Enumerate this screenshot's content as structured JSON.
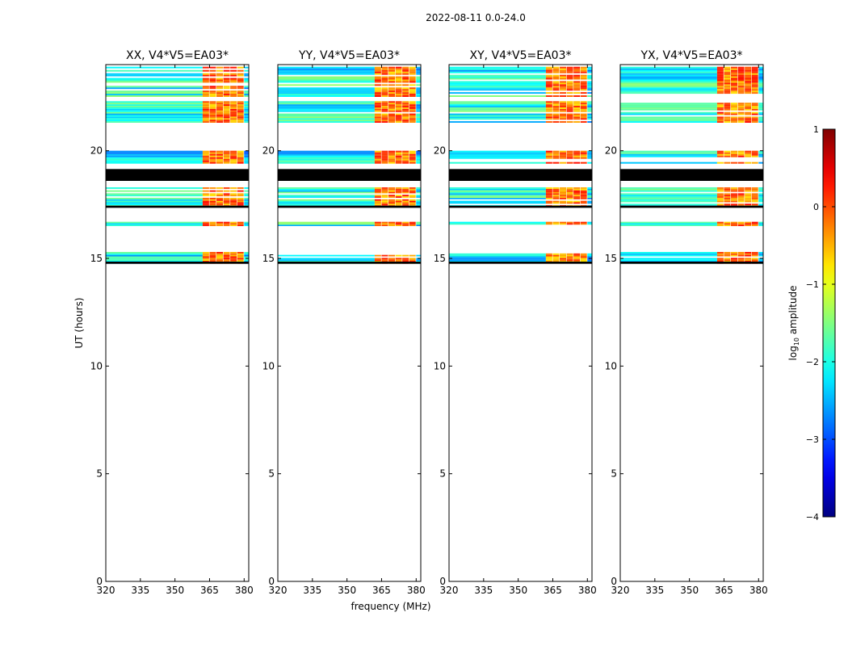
{
  "figure": {
    "title": "2022-08-11 0.0-24.0",
    "xlabel": "frequency (MHz)",
    "ylabel": "UT (hours)"
  },
  "chart_data": {
    "type": "heatmap",
    "xlim": [
      320,
      382
    ],
    "ylim": [
      0,
      24
    ],
    "xticks": [
      320,
      335,
      350,
      365,
      380
    ],
    "yticks": [
      0,
      5,
      10,
      15,
      20
    ],
    "colorbar": {
      "label": "log10 amplitude",
      "label_main": "log",
      "label_sub": "10",
      "label_tail": " amplitude",
      "range": [
        -4,
        1
      ],
      "ticks": [
        1,
        0,
        -1,
        -2,
        -3,
        -4
      ],
      "tick_labels": [
        "1",
        "0",
        "−1",
        "−2",
        "−3",
        "−4"
      ],
      "colormap": "jet"
    },
    "panels": [
      {
        "title": "XX, V4*V5=EA03*",
        "pol": "XX"
      },
      {
        "title": "YY, V4*V5=EA03*",
        "pol": "YY"
      },
      {
        "title": "XY, V4*V5=EA03*",
        "pol": "XY"
      },
      {
        "title": "YX, V4*V5=EA03*",
        "pol": "YX"
      }
    ],
    "data_bands_hours": [
      {
        "start": 14.75,
        "end": 15.3,
        "level": -2.2
      },
      {
        "start": 16.5,
        "end": 16.7,
        "level": -2.0
      },
      {
        "start": 17.4,
        "end": 18.3,
        "level": -2.0
      },
      {
        "start": 19.4,
        "end": 20.0,
        "level": -2.2
      },
      {
        "start": 21.3,
        "end": 22.3,
        "level": -2.0
      },
      {
        "start": 22.5,
        "end": 23.6,
        "level": -2.0
      },
      {
        "start": 23.6,
        "end": 23.9,
        "level": -2.3
      }
    ],
    "flagged_bands_hours": [
      {
        "start": 18.6,
        "end": 19.15
      },
      {
        "start": 17.35,
        "end": 17.45
      },
      {
        "start": 14.75,
        "end": 14.85
      }
    ],
    "rfi_channels_mhz": [
      {
        "start": 362,
        "end": 380,
        "level": 0.0
      }
    ]
  }
}
